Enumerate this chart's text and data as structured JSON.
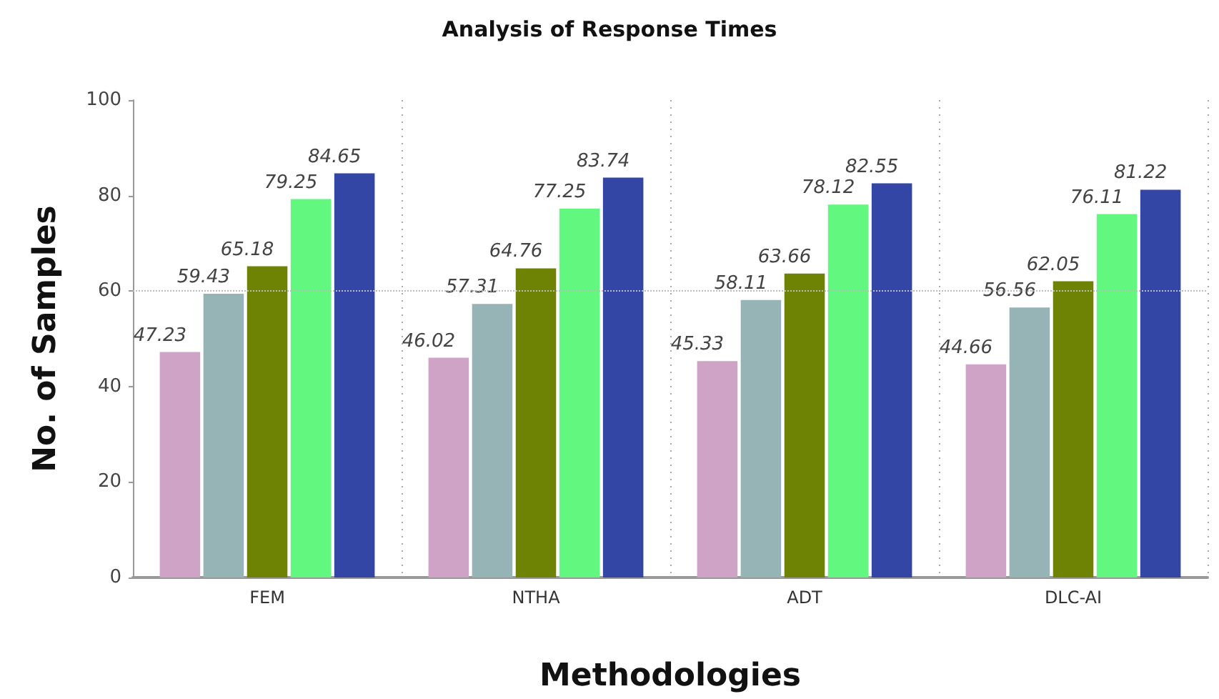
{
  "chart_data": {
    "type": "bar",
    "title": "Analysis of Response Times",
    "xlabel": "Methodologies",
    "ylabel": "No. of Samples",
    "categories": [
      "FEM",
      "NTHA",
      "ADT",
      "DLC-AI"
    ],
    "series": [
      {
        "color": "#cfa3c6",
        "values": [
          47.23,
          46.02,
          45.33,
          44.66
        ]
      },
      {
        "color": "#96b4b6",
        "values": [
          59.43,
          57.31,
          58.11,
          56.56
        ]
      },
      {
        "color": "#6e8204",
        "values": [
          65.18,
          64.76,
          63.66,
          62.05
        ]
      },
      {
        "color": "#62f77f",
        "values": [
          79.25,
          77.25,
          78.12,
          76.11
        ]
      },
      {
        "color": "#3346a6",
        "values": [
          84.65,
          83.74,
          82.55,
          81.22
        ]
      }
    ],
    "ylim": [
      0,
      100
    ],
    "yticks": [
      0,
      20,
      40,
      60,
      80,
      100
    ],
    "grid": "x",
    "data_labels": true,
    "ref_lines": [
      {
        "axis": "y",
        "value": 60,
        "color": "#bbbbbb",
        "line_style": "dotted"
      }
    ]
  }
}
